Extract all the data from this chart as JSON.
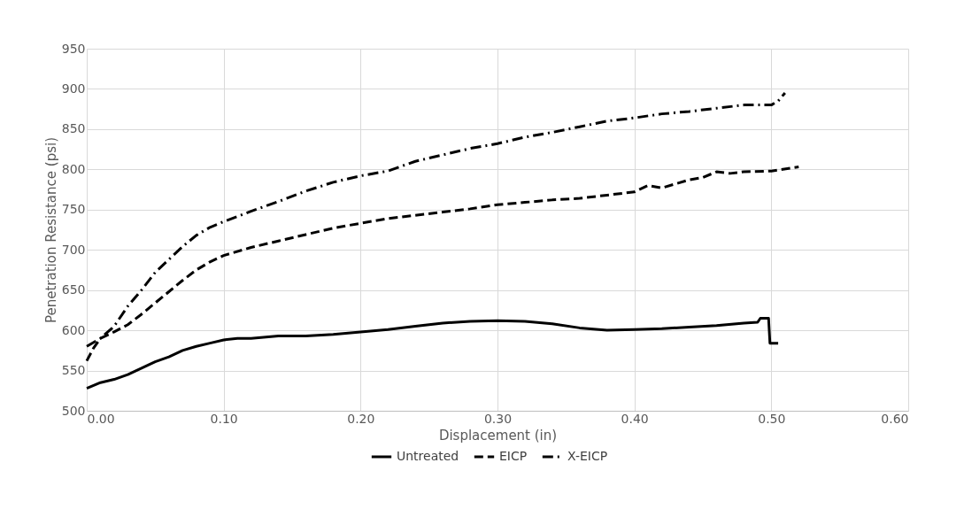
{
  "chart_data": {
    "type": "line",
    "xlabel": "Displacement (in)",
    "ylabel": "Penetration Resistance (psi)",
    "xlim": [
      0,
      0.6
    ],
    "xticks": [
      {
        "value": 0,
        "label": "0.00"
      },
      {
        "value": 0.1,
        "label": "0.10"
      },
      {
        "value": 0.2,
        "label": "0.20"
      },
      {
        "value": 0.3,
        "label": "0.30"
      },
      {
        "value": 0.4,
        "label": "0.40"
      },
      {
        "value": 0.5,
        "label": "0.50"
      },
      {
        "value": 0.6,
        "label": "0.60"
      }
    ],
    "ylim": [
      500,
      950
    ],
    "yticks": [
      500,
      550,
      600,
      650,
      700,
      750,
      800,
      850,
      900,
      950
    ],
    "grid": true,
    "legend": "bottom",
    "marker": "none",
    "series": [
      {
        "name": "Untreated",
        "color": "#000000",
        "line_style": "solid",
        "x": [
          0,
          0.01,
          0.02,
          0.03,
          0.04,
          0.05,
          0.06,
          0.07,
          0.08,
          0.09,
          0.1,
          0.11,
          0.12,
          0.14,
          0.16,
          0.18,
          0.2,
          0.22,
          0.24,
          0.26,
          0.28,
          0.3,
          0.32,
          0.34,
          0.36,
          0.38,
          0.4,
          0.42,
          0.44,
          0.46,
          0.48,
          0.49,
          0.492,
          0.498,
          0.499,
          0.505
        ],
        "values": [
          528,
          535,
          539,
          545,
          553,
          561,
          567,
          575,
          580,
          584,
          588,
          590,
          590,
          593,
          593,
          595,
          598,
          601,
          605,
          609,
          611,
          612,
          611,
          608,
          603,
          600,
          601,
          602,
          604,
          606,
          609,
          610,
          615,
          615,
          584,
          584
        ]
      },
      {
        "name": "EICP",
        "color": "#000000",
        "line_style": "dashed",
        "x": [
          0,
          0.005,
          0.01,
          0.02,
          0.03,
          0.04,
          0.05,
          0.06,
          0.07,
          0.08,
          0.09,
          0.1,
          0.12,
          0.14,
          0.16,
          0.18,
          0.2,
          0.22,
          0.24,
          0.26,
          0.28,
          0.3,
          0.32,
          0.34,
          0.36,
          0.38,
          0.4,
          0.41,
          0.42,
          0.44,
          0.45,
          0.46,
          0.47,
          0.48,
          0.5,
          0.52
        ],
        "values": [
          562,
          578,
          590,
          598,
          607,
          620,
          634,
          648,
          662,
          675,
          685,
          693,
          703,
          711,
          719,
          727,
          733,
          739,
          743,
          747,
          751,
          756,
          759,
          762,
          764,
          768,
          772,
          780,
          777,
          787,
          790,
          797,
          795,
          797,
          798,
          803
        ]
      },
      {
        "name": "X-EICP",
        "color": "#000000",
        "line_style": "dashdot",
        "x": [
          0,
          0.01,
          0.02,
          0.03,
          0.04,
          0.05,
          0.06,
          0.07,
          0.08,
          0.09,
          0.1,
          0.12,
          0.14,
          0.16,
          0.18,
          0.2,
          0.22,
          0.24,
          0.26,
          0.28,
          0.3,
          0.32,
          0.34,
          0.36,
          0.38,
          0.4,
          0.42,
          0.44,
          0.46,
          0.48,
          0.5,
          0.505,
          0.51
        ],
        "values": [
          580,
          590,
          605,
          630,
          650,
          672,
          688,
          704,
          718,
          728,
          735,
          748,
          760,
          773,
          784,
          792,
          798,
          810,
          818,
          826,
          832,
          840,
          846,
          853,
          860,
          864,
          869,
          872,
          876,
          880,
          880,
          885,
          895
        ]
      }
    ]
  }
}
